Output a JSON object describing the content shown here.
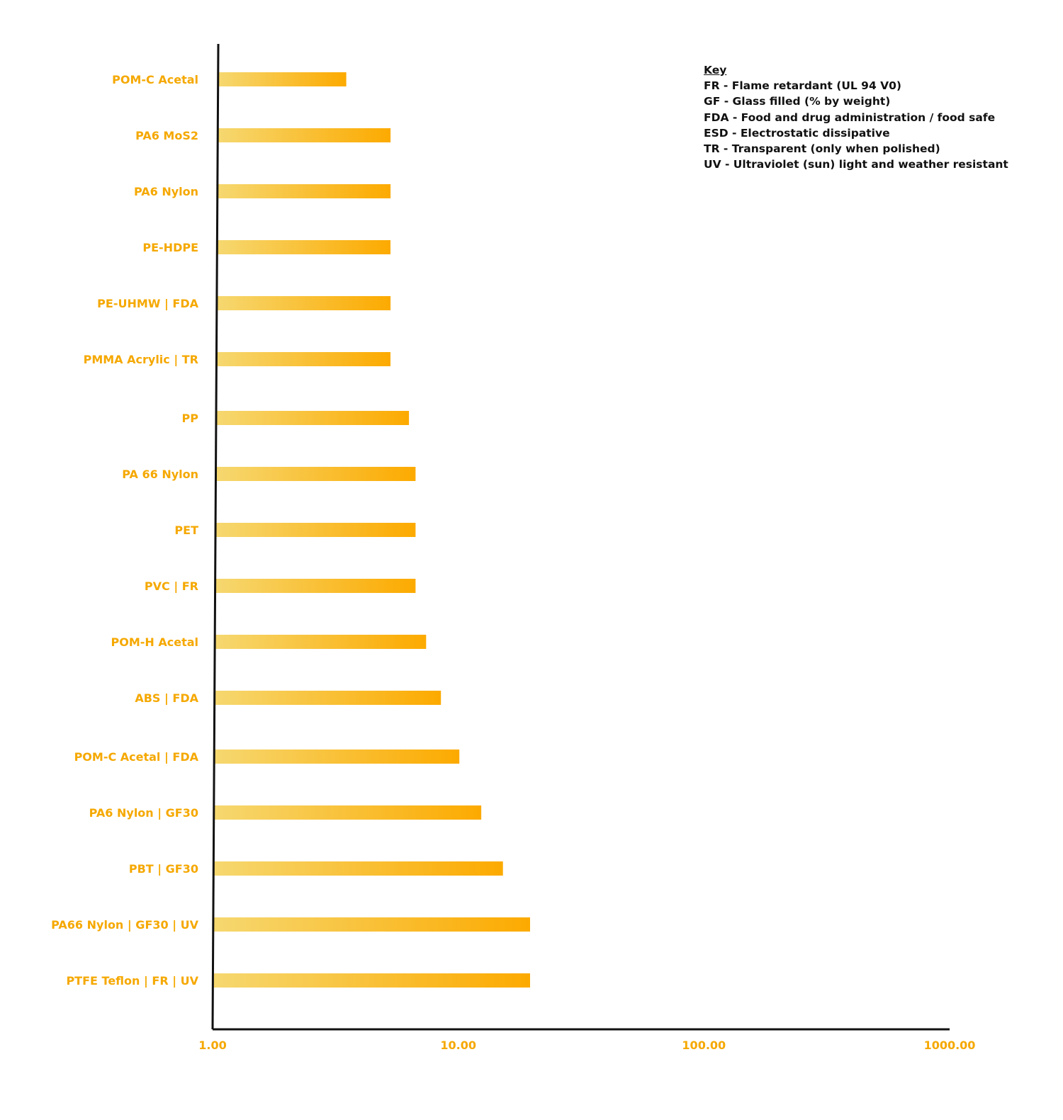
{
  "chart_data": {
    "type": "bar",
    "orientation": "horizontal",
    "x_scale": "log",
    "xlim": [
      1,
      1000
    ],
    "x_ticks": [
      "1.00",
      "10.00",
      "100.00",
      "1000.00"
    ],
    "categories": [
      "POM-C Acetal",
      "PA6 MoS2",
      "PA6 Nylon",
      "PE-HDPE",
      "PE-UHMW | FDA",
      "PMMA Acrylic | TR",
      "PP",
      "PA 66 Nylon",
      "PET",
      "PVC | FR",
      "POM-H Acetal",
      "ABS | FDA",
      "POM-C Acetal | FDA",
      "PA6 Nylon | GF30",
      "PBT | GF30",
      "PA66 Nylon | GF30 | UV",
      "PTFE Teflon | FR | UV"
    ],
    "values": [
      3.5,
      5.3,
      5.3,
      5.3,
      5.3,
      5.3,
      6.3,
      6.7,
      6.7,
      6.7,
      7.4,
      8.5,
      10.1,
      12.4,
      15.2,
      19.6,
      19.6
    ],
    "title": "",
    "xlabel": "",
    "ylabel": "",
    "grid": false,
    "bar_color_start": "#f6d870",
    "bar_color_end": "#fcaa00",
    "label_color": "#f5a800",
    "axis_color": "#111111"
  },
  "key": {
    "title": "Key",
    "items": [
      "FR - Flame retardant (UL 94 V0)",
      "GF - Glass filled (% by weight)",
      "FDA - Food and drug administration / food safe",
      "ESD - Electrostatic dissipative",
      "TR - Transparent (only when polished)",
      "UV - Ultraviolet (sun) light and weather resistant"
    ]
  }
}
